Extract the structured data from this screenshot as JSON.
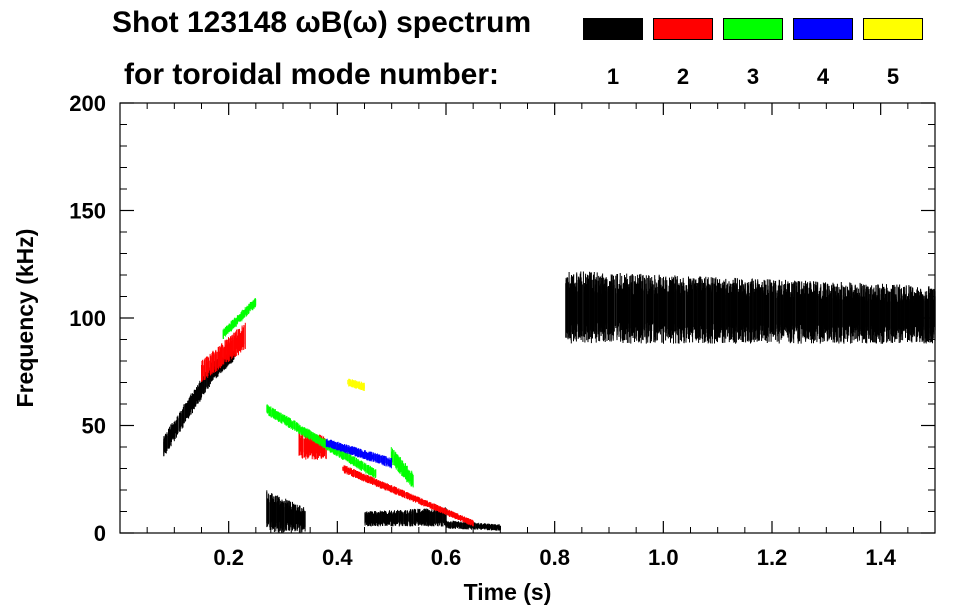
{
  "chart_data": {
    "type": "heatmap",
    "title": "Shot 123148 ωB(ω) spectrum",
    "subtitle": "for toroidal mode number:",
    "xlabel": "Time (s)",
    "ylabel": "Frequency (kHz)",
    "xlim": [
      0.0,
      1.5
    ],
    "ylim": [
      0,
      200
    ],
    "x_ticks": [
      0.2,
      0.4,
      0.6,
      0.8,
      1.0,
      1.2,
      1.4
    ],
    "x_tick_labels": [
      "0.2",
      "0.4",
      "0.6",
      "0.8",
      "1.0",
      "1.2",
      "1.4"
    ],
    "y_ticks": [
      0,
      50,
      100,
      150,
      200
    ],
    "y_tick_labels": [
      "0",
      "50",
      "100",
      "150",
      "200"
    ],
    "grid": false,
    "legend_position": "top-right",
    "series": [
      {
        "label": "1",
        "color": "#000000",
        "bands": [
          {
            "t": [
              0.08,
              0.17
            ],
            "f_start": [
              35,
              45
            ],
            "f_end": [
              70,
              80
            ]
          },
          {
            "t": [
              0.17,
              0.21
            ],
            "f_start": [
              70,
              80
            ],
            "f_end": [
              80,
              85
            ]
          },
          {
            "t": [
              0.27,
              0.34
            ],
            "f_start": [
              0,
              20
            ],
            "f_end": [
              0,
              12
            ]
          },
          {
            "t": [
              0.45,
              0.6
            ],
            "f_start": [
              3,
              10
            ],
            "f_end": [
              3,
              12
            ]
          },
          {
            "t": [
              0.6,
              0.7
            ],
            "f_start": [
              2,
              6
            ],
            "f_end": [
              1,
              4
            ]
          },
          {
            "t": [
              0.82,
              1.5
            ],
            "f_start": [
              88,
              122
            ],
            "f_end": [
              88,
              115
            ]
          }
        ]
      },
      {
        "label": "2",
        "color": "#ff0000",
        "bands": [
          {
            "t": [
              0.15,
              0.23
            ],
            "f_start": [
              70,
              80
            ],
            "f_end": [
              85,
              98
            ]
          },
          {
            "t": [
              0.33,
              0.38
            ],
            "f_start": [
              34,
              48
            ],
            "f_end": [
              34,
              45
            ]
          },
          {
            "t": [
              0.41,
              0.65
            ],
            "f_start": [
              28,
              32
            ],
            "f_end": [
              3,
              6
            ]
          }
        ]
      },
      {
        "label": "3",
        "color": "#00ff00",
        "bands": [
          {
            "t": [
              0.19,
              0.25
            ],
            "f_start": [
              90,
              95
            ],
            "f_end": [
              105,
              110
            ]
          },
          {
            "t": [
              0.27,
              0.47
            ],
            "f_start": [
              55,
              60
            ],
            "f_end": [
              25,
              30
            ]
          },
          {
            "t": [
              0.5,
              0.54
            ],
            "f_start": [
              32,
              40
            ],
            "f_end": [
              20,
              28
            ]
          }
        ]
      },
      {
        "label": "4",
        "color": "#0000ff",
        "bands": [
          {
            "t": [
              0.38,
              0.5
            ],
            "f_start": [
              40,
              44
            ],
            "f_end": [
              30,
              35
            ]
          }
        ]
      },
      {
        "label": "5",
        "color": "#ffff00",
        "bands": [
          {
            "t": [
              0.42,
              0.45
            ],
            "f_start": [
              68,
              72
            ],
            "f_end": [
              66,
              70
            ]
          }
        ]
      }
    ]
  }
}
